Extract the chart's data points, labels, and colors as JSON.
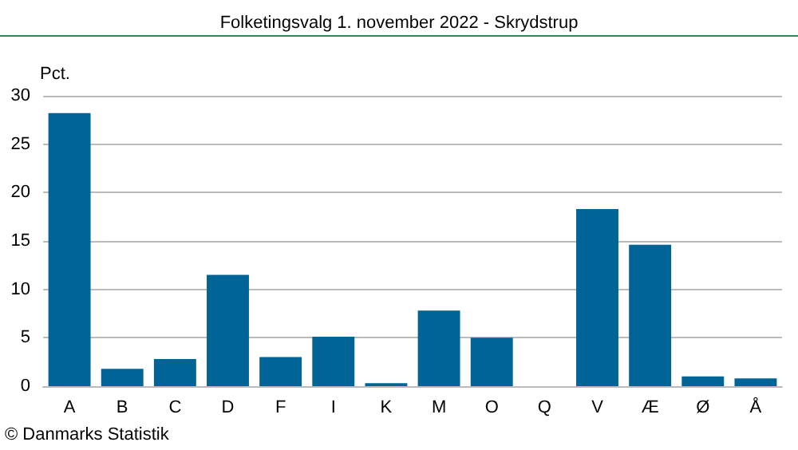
{
  "chart_data": {
    "type": "bar",
    "title": "Folketingsvalg 1. november 2022 - Skrydstrup",
    "ylabel": "Pct.",
    "categories": [
      "A",
      "B",
      "C",
      "D",
      "F",
      "I",
      "K",
      "M",
      "O",
      "Q",
      "V",
      "Æ",
      "Ø",
      "Å"
    ],
    "values": [
      28.2,
      1.8,
      2.8,
      11.5,
      3.0,
      5.1,
      0.3,
      7.8,
      5.0,
      0,
      18.3,
      14.6,
      1.0,
      0.8
    ],
    "color": "#006496",
    "ylim": [
      0,
      30
    ],
    "yticks": [
      0,
      5,
      10,
      15,
      20,
      25,
      30
    ],
    "grid": "y",
    "annotations": [
      "© Danmarks Statistik"
    ]
  }
}
